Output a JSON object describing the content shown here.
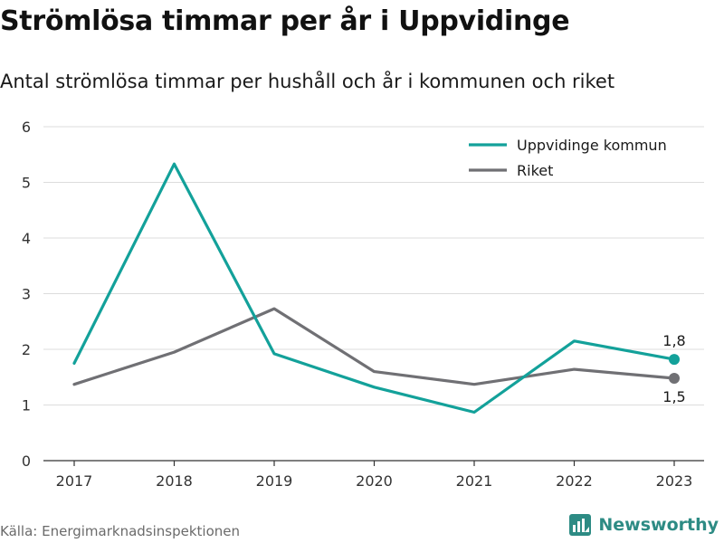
{
  "header": {
    "title": "Strömlösa timmar per år i Uppvidinge",
    "subtitle": "Antal strömlösa timmar per hushåll och år i kommunen och riket"
  },
  "footer": {
    "source": "Källa: Energimarknadsinspektionen",
    "brand": "Newsworthy",
    "brand_color": "#2d8b84"
  },
  "chart_data": {
    "type": "line",
    "x": [
      "2017",
      "2018",
      "2019",
      "2020",
      "2021",
      "2022",
      "2023"
    ],
    "ylim": [
      0,
      6
    ],
    "yticks": [
      0,
      1,
      2,
      3,
      4,
      5,
      6
    ],
    "grid": true,
    "legend_position": "top-right",
    "series": [
      {
        "name": "Uppvidinge kommun",
        "color": "#13a19a",
        "values": [
          1.75,
          5.33,
          1.92,
          1.32,
          0.87,
          2.15,
          1.82
        ],
        "end_label": "1,8"
      },
      {
        "name": "Riket",
        "color": "#707074",
        "values": [
          1.37,
          1.95,
          2.73,
          1.6,
          1.37,
          1.64,
          1.48
        ],
        "end_label": "1,5"
      }
    ]
  }
}
